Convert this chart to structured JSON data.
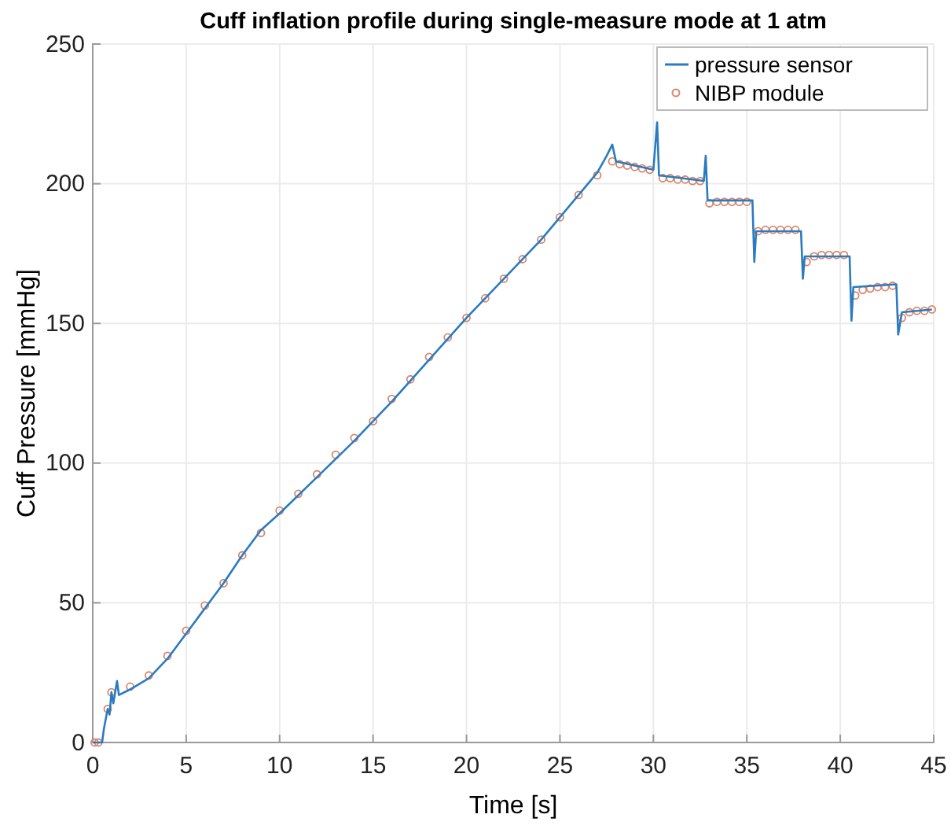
{
  "chart_data": {
    "type": "line",
    "title": "Cuff inflation profile during single-measure mode at 1 atm",
    "xlabel": "Time [s]",
    "ylabel": "Cuff Pressure [mmHg]",
    "xlim": [
      0,
      45
    ],
    "ylim": [
      0,
      250
    ],
    "xticks": [
      0,
      5,
      10,
      15,
      20,
      25,
      30,
      35,
      40,
      45
    ],
    "yticks": [
      0,
      50,
      100,
      150,
      200,
      250
    ],
    "grid": true,
    "legend": "top right",
    "series": [
      {
        "name": "pressure sensor",
        "color": "#2a7bbf",
        "line_style": "solid",
        "marker": "none",
        "x": [
          0,
          0.5,
          0.6,
          0.8,
          0.9,
          1.0,
          1.1,
          1.3,
          1.4,
          2,
          3,
          4,
          5,
          6,
          7,
          8,
          9,
          10,
          12,
          14,
          16,
          18,
          20,
          22,
          24,
          26,
          27,
          27.5,
          27.8,
          28,
          30,
          30.2,
          30.3,
          32.7,
          32.8,
          32.9,
          35.3,
          35.4,
          35.5,
          37.9,
          38,
          38.1,
          40.5,
          40.6,
          40.7,
          43,
          43.1,
          43.3,
          44.9
        ],
        "values": [
          0,
          0,
          5,
          12,
          10,
          18,
          14,
          22,
          17,
          19,
          23,
          30,
          39,
          48,
          57,
          67,
          76,
          82,
          95,
          108,
          122,
          137,
          152,
          166,
          180,
          196,
          204,
          210,
          214,
          208,
          205,
          222,
          203,
          201,
          210,
          194,
          194,
          172,
          183,
          183,
          166,
          174,
          174,
          151,
          163,
          164,
          146,
          154,
          155
        ]
      },
      {
        "name": "NIBP module",
        "type": "scatter",
        "color": "#d9866b",
        "marker": "circle",
        "x": [
          0.1,
          0.3,
          0.8,
          1.0,
          2,
          3,
          4,
          5,
          6,
          7,
          8,
          9,
          10,
          11,
          12,
          13,
          14,
          15,
          16,
          17,
          18,
          19,
          20,
          21,
          22,
          23,
          24,
          25,
          26,
          27,
          27.8,
          28.2,
          28.6,
          29,
          29.4,
          29.8,
          30.5,
          30.9,
          31.3,
          31.7,
          32.1,
          32.5,
          33,
          33.4,
          33.8,
          34.2,
          34.6,
          35,
          35.6,
          36,
          36.4,
          36.8,
          37.2,
          37.6,
          38.2,
          38.6,
          39,
          39.4,
          39.8,
          40.2,
          40.8,
          41.2,
          41.6,
          42,
          42.4,
          42.8,
          43.3,
          43.7,
          44.1,
          44.5,
          44.9
        ],
        "values": [
          0,
          0,
          12,
          18,
          20,
          24,
          31,
          40,
          49,
          57,
          67,
          75,
          83,
          89,
          96,
          103,
          109,
          115,
          123,
          130,
          138,
          145,
          152,
          159,
          166,
          173,
          180,
          188,
          196,
          203,
          208,
          207,
          206.5,
          206,
          205.5,
          205,
          202,
          202,
          201.5,
          201.5,
          201,
          201,
          193,
          193.5,
          193.5,
          193.5,
          193.5,
          193.5,
          183,
          183.5,
          183.5,
          183.5,
          183.5,
          183.5,
          172,
          174,
          174.5,
          174.5,
          174.5,
          174.5,
          160,
          162,
          162.5,
          163,
          163,
          163.5,
          152,
          154,
          154.5,
          154.5,
          155
        ]
      }
    ]
  }
}
